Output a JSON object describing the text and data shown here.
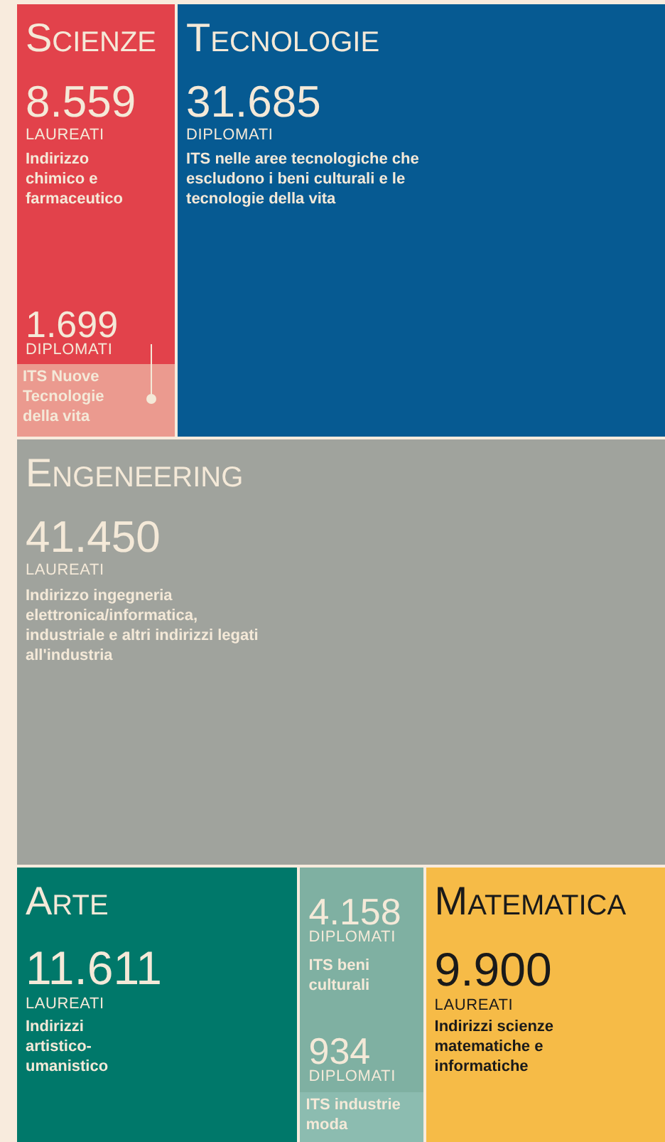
{
  "chart_data": {
    "type": "other",
    "categories": [
      "Indirizzo chimico e farmaceutico",
      "ITS Nuove Tecnologie della vita",
      "ITS nelle aree tecnologiche che escludono i beni culturali e le tecnologie della vita",
      "Indirizzo ingegneria elettronica/informatica, industriale e altri indirizzi legati all'industria",
      "Indirizzi artistico-umanistico",
      "ITS beni culturali",
      "ITS industrie moda",
      "Indirizzi scienze matematiche e informatiche"
    ],
    "series": [
      {
        "name": "LAUREATI",
        "values": [
          8559,
          null,
          null,
          41450,
          11611,
          null,
          null,
          9900
        ],
        "value_labels": [
          "8.559",
          null,
          null,
          "41.450",
          "11.611",
          null,
          null,
          "9.900"
        ],
        "colors": [
          "#e2424b",
          null,
          null,
          "#a0a39d",
          "#00786a",
          null,
          null,
          "#f6bb47"
        ]
      },
      {
        "name": "DIPLOMATI",
        "values": [
          null,
          1699,
          31685,
          null,
          null,
          4158,
          934,
          null
        ],
        "value_labels": [
          null,
          "1.699",
          "31.685",
          null,
          null,
          "4.158",
          "934",
          null
        ],
        "colors": [
          null,
          "#eb9a8f",
          "#065a92",
          null,
          null,
          "#7fb0a2",
          "#8cbcb0",
          null
        ]
      }
    ],
    "annotations": [
      "Scienze",
      "Tecnologie",
      "Engeneering",
      "Arte",
      "Matematica"
    ]
  }
}
